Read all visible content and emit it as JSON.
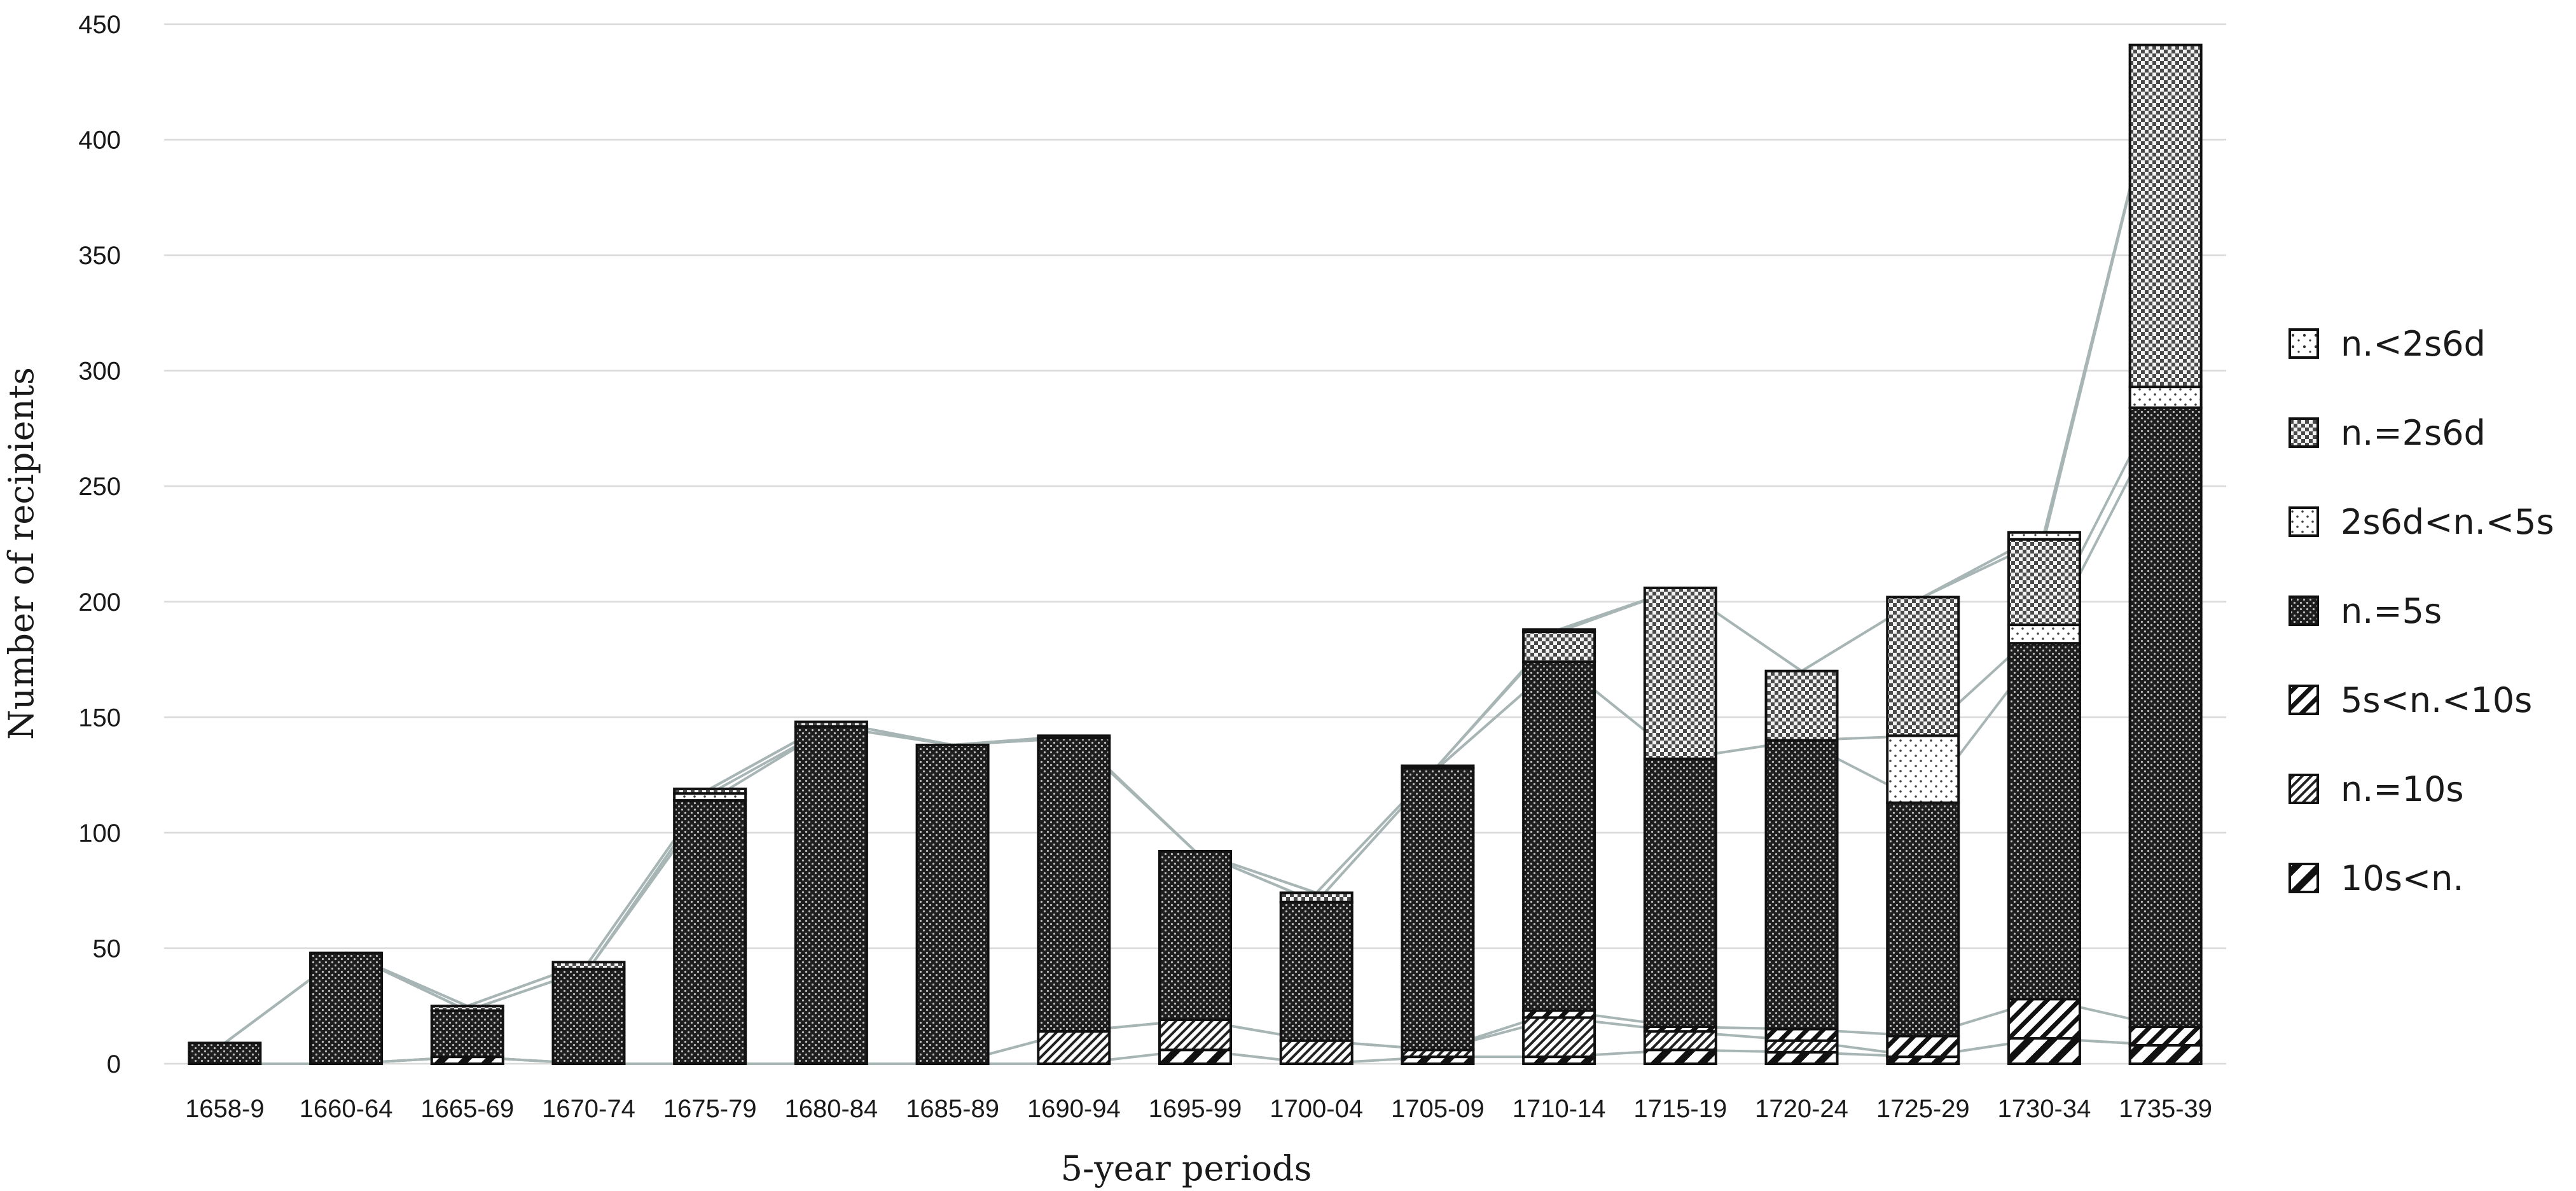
{
  "chart_data": {
    "type": "bar",
    "stacked": true,
    "connector_lines": true,
    "title": "",
    "xlabel": "5-year periods",
    "ylabel": "Number of recipients",
    "ylim": [
      0,
      450
    ],
    "yticks": [
      0,
      50,
      100,
      150,
      200,
      250,
      300,
      350,
      400,
      450
    ],
    "grid": "horizontal",
    "legend_position": "right",
    "categories": [
      "1658-9",
      "1660-64",
      "1665-69",
      "1670-74",
      "1675-79",
      "1680-84",
      "1685-89",
      "1690-94",
      "1695-99",
      "1700-04",
      "1705-09",
      "1710-14",
      "1715-19",
      "1720-24",
      "1725-29",
      "1730-34",
      "1735-39"
    ],
    "series": [
      {
        "name": "10s<n.",
        "pattern": "hatch-wide",
        "values": [
          0,
          0,
          3,
          0,
          0,
          0,
          0,
          0,
          6,
          0,
          3,
          3,
          6,
          5,
          3,
          11,
          8
        ]
      },
      {
        "name": "n.=10s",
        "pattern": "hatch-dense",
        "values": [
          0,
          0,
          0,
          0,
          0,
          0,
          0,
          14,
          13,
          10,
          3,
          17,
          8,
          5,
          0,
          0,
          0
        ]
      },
      {
        "name": "5s<n.<10s",
        "pattern": "hatch-medium",
        "values": [
          0,
          0,
          0,
          0,
          0,
          0,
          0,
          0,
          0,
          0,
          0,
          3,
          2,
          5,
          9,
          17,
          8
        ]
      },
      {
        "name": "n.=5s",
        "pattern": "dots-dark",
        "values": [
          9,
          48,
          20,
          41,
          114,
          146,
          138,
          127,
          73,
          60,
          122,
          151,
          116,
          125,
          101,
          154,
          268
        ]
      },
      {
        "name": "2s6d<n.<5s",
        "pattern": "dots-light",
        "values": [
          0,
          0,
          0,
          0,
          3,
          0,
          0,
          0,
          0,
          0,
          0,
          0,
          0,
          0,
          29,
          8,
          9
        ]
      },
      {
        "name": "n.=2s6d",
        "pattern": "checker",
        "values": [
          0,
          0,
          2,
          3,
          2,
          2,
          0,
          1,
          0,
          4,
          1,
          13,
          74,
          30,
          60,
          37,
          148
        ]
      },
      {
        "name": "n.<2s6d",
        "pattern": "dots-sparse",
        "values": [
          0,
          0,
          0,
          0,
          0,
          0,
          0,
          0,
          0,
          0,
          0,
          1,
          0,
          0,
          0,
          3,
          0
        ]
      }
    ]
  }
}
